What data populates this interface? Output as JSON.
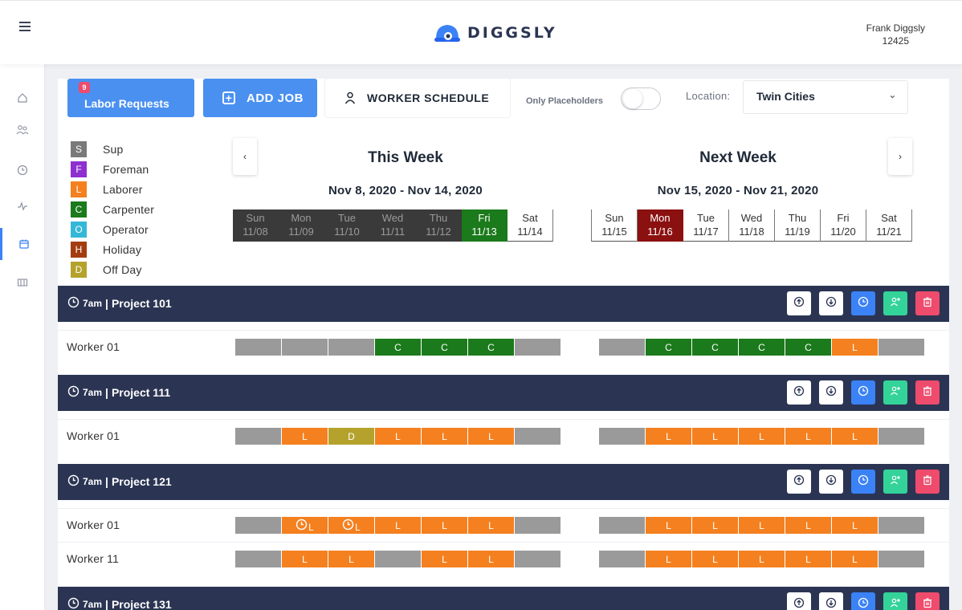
{
  "header": {
    "brand": "DIGGSLY",
    "user_name": "Frank Diggsly",
    "user_id": "12425"
  },
  "sidebar": {
    "items": [
      "home-icon",
      "users-icon",
      "clock-icon",
      "activity-icon",
      "calendar-icon",
      "grid-icon"
    ],
    "active": 4
  },
  "toolbar": {
    "labor_requests_label": "Labor Requests",
    "labor_requests_badge": "9",
    "add_job_label": "ADD JOB",
    "worker_schedule_label": "WORKER SCHEDULE",
    "only_placeholders_label": "Only Placeholders",
    "only_placeholders_on": false,
    "location_label": "Location:",
    "location_value": "Twin Cities"
  },
  "legend": [
    {
      "code": "S",
      "label": "Sup",
      "color": "#7a7a7a"
    },
    {
      "code": "F",
      "label": "Foreman",
      "color": "#8e2fd0"
    },
    {
      "code": "L",
      "label": "Laborer",
      "color": "#f4801f"
    },
    {
      "code": "C",
      "label": "Carpenter",
      "color": "#1b7a1b"
    },
    {
      "code": "O",
      "label": "Operator",
      "color": "#35b8d8"
    },
    {
      "code": "H",
      "label": "Holiday",
      "color": "#a33d0f"
    },
    {
      "code": "D",
      "label": "Off Day",
      "color": "#b4a22d"
    }
  ],
  "this_week": {
    "title": "This Week",
    "range": "Nov 8, 2020 - Nov 14, 2020",
    "days": [
      {
        "name": "Sun",
        "date": "11/08",
        "state": "past"
      },
      {
        "name": "Mon",
        "date": "11/09",
        "state": "past"
      },
      {
        "name": "Tue",
        "date": "11/10",
        "state": "past"
      },
      {
        "name": "Wed",
        "date": "11/11",
        "state": "past"
      },
      {
        "name": "Thu",
        "date": "11/12",
        "state": "past"
      },
      {
        "name": "Fri",
        "date": "11/13",
        "state": "today"
      },
      {
        "name": "Sat",
        "date": "11/14",
        "state": "normal"
      }
    ]
  },
  "next_week": {
    "title": "Next Week",
    "range": "Nov 15, 2020 - Nov 21, 2020",
    "days": [
      {
        "name": "Sun",
        "date": "11/15",
        "state": "normal"
      },
      {
        "name": "Mon",
        "date": "11/16",
        "state": "holiday"
      },
      {
        "name": "Tue",
        "date": "11/17",
        "state": "normal"
      },
      {
        "name": "Wed",
        "date": "11/18",
        "state": "normal"
      },
      {
        "name": "Thu",
        "date": "11/19",
        "state": "normal"
      },
      {
        "name": "Fri",
        "date": "11/20",
        "state": "normal"
      },
      {
        "name": "Sat",
        "date": "11/21",
        "state": "normal"
      }
    ]
  },
  "projects": [
    {
      "time": "7am",
      "separator": "|",
      "name": "Project 101",
      "workers": [
        {
          "name": "Worker 01",
          "this_week": [
            {
              "t": ""
            },
            {
              "t": ""
            },
            {
              "t": ""
            },
            {
              "t": "C"
            },
            {
              "t": "C"
            },
            {
              "t": "C"
            },
            {
              "t": ""
            }
          ],
          "next_week": [
            {
              "t": ""
            },
            {
              "t": "C"
            },
            {
              "t": "C"
            },
            {
              "t": "C"
            },
            {
              "t": "C"
            },
            {
              "t": "L"
            },
            {
              "t": ""
            }
          ]
        }
      ]
    },
    {
      "time": "7am",
      "separator": "|",
      "name": "Project 111",
      "workers": [
        {
          "name": "Worker 01",
          "this_week": [
            {
              "t": ""
            },
            {
              "t": "L"
            },
            {
              "t": "D"
            },
            {
              "t": "L"
            },
            {
              "t": "L"
            },
            {
              "t": "L"
            },
            {
              "t": ""
            }
          ],
          "next_week": [
            {
              "t": ""
            },
            {
              "t": "L"
            },
            {
              "t": "L"
            },
            {
              "t": "L"
            },
            {
              "t": "L"
            },
            {
              "t": "L"
            },
            {
              "t": ""
            }
          ]
        }
      ]
    },
    {
      "time": "7am",
      "separator": "|",
      "name": "Project 121",
      "workers": [
        {
          "name": "Worker 01",
          "this_week": [
            {
              "t": ""
            },
            {
              "t": "L",
              "clock": true
            },
            {
              "t": "L",
              "clock": true
            },
            {
              "t": "L"
            },
            {
              "t": "L"
            },
            {
              "t": "L"
            },
            {
              "t": ""
            }
          ],
          "next_week": [
            {
              "t": ""
            },
            {
              "t": "L"
            },
            {
              "t": "L"
            },
            {
              "t": "L"
            },
            {
              "t": "L"
            },
            {
              "t": "L"
            },
            {
              "t": ""
            }
          ]
        },
        {
          "name": "Worker 11",
          "this_week": [
            {
              "t": ""
            },
            {
              "t": "L"
            },
            {
              "t": "L"
            },
            {
              "t": ""
            },
            {
              "t": "L"
            },
            {
              "t": "L"
            },
            {
              "t": ""
            }
          ],
          "next_week": [
            {
              "t": ""
            },
            {
              "t": "L"
            },
            {
              "t": "L"
            },
            {
              "t": "L"
            },
            {
              "t": "L"
            },
            {
              "t": "L"
            },
            {
              "t": ""
            }
          ]
        }
      ]
    },
    {
      "time": "7am",
      "separator": "|",
      "name": "Project 131",
      "workers": []
    }
  ]
}
